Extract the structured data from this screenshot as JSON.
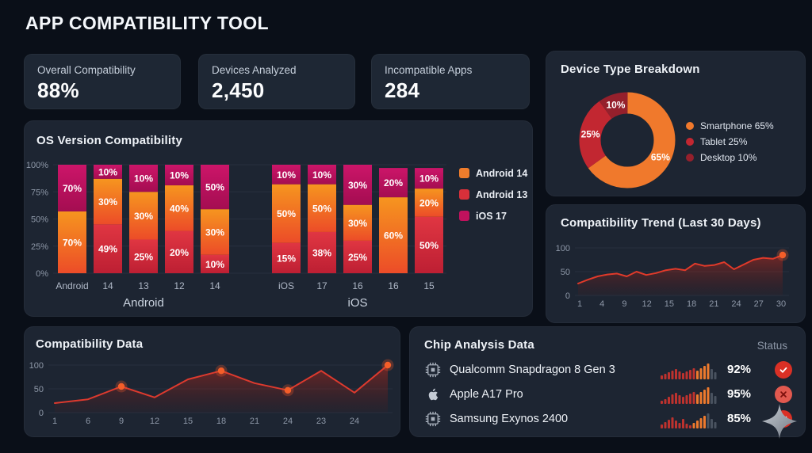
{
  "header": {
    "title": "APP COMPATIBILITY TOOL"
  },
  "stats": [
    {
      "label": "Overall Compatibility",
      "value": "88%"
    },
    {
      "label": "Devices Analyzed",
      "value": "2,450"
    },
    {
      "label": "Incompatible Apps",
      "value": "284"
    }
  ],
  "chart_data": [
    {
      "id": "os-version",
      "type": "bar",
      "stacked": true,
      "title": "OS Version Compatibility",
      "yticks": [
        "0%",
        "25%",
        "50%",
        "75%",
        "100%"
      ],
      "grid": true,
      "legend_position": "right",
      "palette": {
        "orange_top": "#f6951f",
        "orange_bottom": "#ec4c28",
        "red_top": "#e03642",
        "red_bottom": "#bd1f33",
        "magenta_top": "#cc1569",
        "magenta_bottom": "#a40d51"
      },
      "legend": [
        {
          "label": "Android 14",
          "color_key": "orange"
        },
        {
          "label": "Android 13",
          "color_key": "red"
        },
        {
          "label": "iOS 17",
          "color_key": "magenta"
        }
      ],
      "groups": [
        {
          "label": "Android",
          "from": 0,
          "to": 4
        },
        {
          "label": "iOS",
          "from": 5,
          "to": 9
        }
      ],
      "bars": [
        {
          "x": "Android",
          "segments": [
            {
              "h": 57,
              "c": "orange",
              "label": "70%"
            },
            {
              "h": 43,
              "c": "magenta",
              "label": "70%"
            }
          ]
        },
        {
          "x": "14",
          "segments": [
            {
              "h": 45,
              "c": "red",
              "label": "49%"
            },
            {
              "h": 42,
              "c": "orange",
              "label": "30%"
            },
            {
              "h": 13,
              "c": "magenta",
              "label": "10%"
            }
          ]
        },
        {
          "x": "13",
          "segments": [
            {
              "h": 31,
              "c": "red",
              "label": "25%"
            },
            {
              "h": 44,
              "c": "orange",
              "label": "30%"
            },
            {
              "h": 25,
              "c": "magenta",
              "label": "10%"
            }
          ]
        },
        {
          "x": "12",
          "segments": [
            {
              "h": 39,
              "c": "red",
              "label": "20%"
            },
            {
              "h": 42,
              "c": "orange",
              "label": "40%"
            },
            {
              "h": 19,
              "c": "magenta",
              "label": "10%"
            }
          ]
        },
        {
          "x": "14",
          "segments": [
            {
              "h": 17,
              "c": "red",
              "label": "10%"
            },
            {
              "h": 42,
              "c": "orange",
              "label": "30%"
            },
            {
              "h": 41,
              "c": "magenta",
              "label": "50%"
            }
          ]
        },
        {
          "x": "iOS",
          "segments": [
            {
              "h": 28,
              "c": "red",
              "label": "15%"
            },
            {
              "h": 54,
              "c": "orange",
              "label": "50%"
            },
            {
              "h": 18,
              "c": "magenta",
              "label": "10%"
            }
          ]
        },
        {
          "x": "17",
          "segments": [
            {
              "h": 38,
              "c": "red",
              "label": "38%"
            },
            {
              "h": 44,
              "c": "orange",
              "label": "50%"
            },
            {
              "h": 18,
              "c": "magenta",
              "label": "10%"
            }
          ]
        },
        {
          "x": "16",
          "segments": [
            {
              "h": 30,
              "c": "red",
              "label": "25%"
            },
            {
              "h": 33,
              "c": "orange",
              "label": "30%"
            },
            {
              "h": 37,
              "c": "magenta",
              "label": "30%"
            }
          ]
        },
        {
          "x": "16",
          "segments": [
            {
              "h": 70,
              "c": "orange",
              "label": "60%"
            },
            {
              "h": 27,
              "c": "magenta",
              "label": "20%"
            }
          ]
        },
        {
          "x": "15",
          "segments": [
            {
              "h": 52,
              "c": "red",
              "label": "50%"
            },
            {
              "h": 26,
              "c": "orange",
              "label": "20%"
            },
            {
              "h": 19,
              "c": "magenta",
              "label": "10%"
            }
          ]
        }
      ]
    },
    {
      "id": "device-type",
      "type": "pie",
      "title": "Device Type Breakdown",
      "donut": true,
      "slices": [
        {
          "name": "Smartphone",
          "value": 65,
          "text": "65%",
          "color": "#f0792c"
        },
        {
          "name": "Tablet",
          "value": 25,
          "text": "25%",
          "color": "#c22731"
        },
        {
          "name": "Desktop",
          "value": 10,
          "text": "10%",
          "color": "#95202c"
        }
      ],
      "legend": [
        {
          "label": "Smartphone 65%",
          "color": "#f0792c"
        },
        {
          "label": "Tablet 25%",
          "color": "#c22731"
        },
        {
          "label": "Desktop 10%",
          "color": "#95202c"
        }
      ]
    },
    {
      "id": "trend",
      "type": "area",
      "title": "Compatibility Trend (Last 30 Days)",
      "yticks": [
        0,
        50,
        100
      ],
      "ylim": [
        0,
        100
      ],
      "xticks": [
        "1",
        "4",
        "9",
        "12",
        "15",
        "18",
        "21",
        "24",
        "27",
        "30"
      ],
      "line_color": "#e13a2a",
      "values": [
        25,
        33,
        40,
        44,
        46,
        40,
        50,
        43,
        47,
        53,
        56,
        53,
        67,
        62,
        64,
        70,
        55,
        65,
        75,
        79,
        77,
        85
      ],
      "end_marker": true
    },
    {
      "id": "compat-data",
      "type": "line",
      "title": "Compatibility Data",
      "yticks": [
        0,
        50,
        100
      ],
      "ylim": [
        0,
        100
      ],
      "xticks": [
        "1",
        "6",
        "9",
        "12",
        "15",
        "18",
        "21",
        "24",
        "23",
        "24"
      ],
      "line_color": "#dd3a2e",
      "values": [
        20,
        28,
        55,
        32,
        70,
        88,
        62,
        47,
        88,
        42,
        100
      ],
      "marker_indices": [
        2,
        5,
        7,
        10
      ]
    }
  ],
  "chip_panel": {
    "title": "Chip Analysis Data",
    "status_header": "Status",
    "spark_palette": {
      "r": "#bd322e",
      "o": "#ee7a2d",
      "g": "#49525f"
    },
    "rows": [
      {
        "icon": "chip-icon",
        "name": "Qualcomm Snapdragon 8 Gen 3",
        "value": "92%",
        "status": "check",
        "spark": {
          "heights": [
            5,
            7,
            9,
            11,
            13,
            10,
            8,
            10,
            12,
            14,
            11,
            14,
            17,
            20,
            13,
            9
          ],
          "colors": [
            "r",
            "r",
            "r",
            "r",
            "r",
            "r",
            "r",
            "r",
            "r",
            "r",
            "o",
            "o",
            "o",
            "o",
            "g",
            "g"
          ]
        }
      },
      {
        "icon": "apple-icon",
        "name": "Apple A17 Pro",
        "value": "95%",
        "status": "cross",
        "spark": {
          "heights": [
            4,
            6,
            9,
            12,
            14,
            11,
            9,
            11,
            13,
            15,
            12,
            15,
            18,
            21,
            14,
            10
          ],
          "colors": [
            "r",
            "r",
            "r",
            "r",
            "r",
            "r",
            "r",
            "r",
            "r",
            "r",
            "o",
            "o",
            "o",
            "o",
            "g",
            "g"
          ]
        }
      },
      {
        "icon": "chip-icon",
        "name": "Samsung Exynos 2400",
        "value": "85%",
        "status": "check-star",
        "spark": {
          "heights": [
            5,
            8,
            11,
            14,
            10,
            7,
            12,
            6,
            4,
            7,
            10,
            13,
            16,
            19,
            12,
            8
          ],
          "colors": [
            "r",
            "r",
            "r",
            "r",
            "r",
            "r",
            "r",
            "r",
            "r",
            "o",
            "o",
            "o",
            "o",
            "g",
            "g",
            "g"
          ]
        }
      }
    ]
  }
}
